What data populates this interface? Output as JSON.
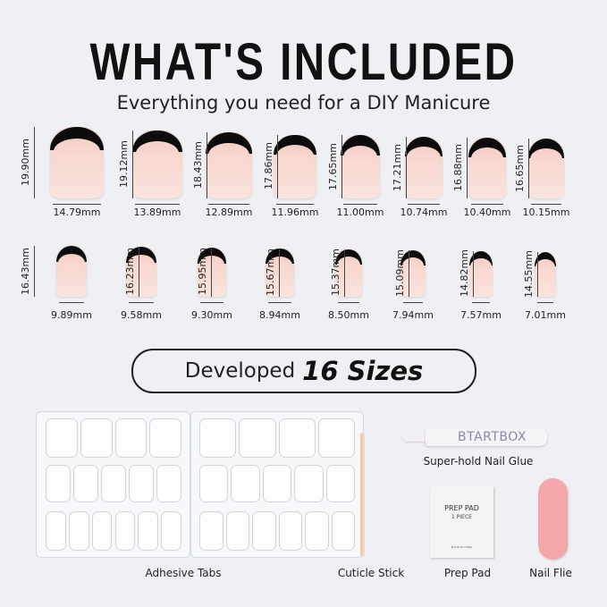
{
  "title": "WHAT'S INCLUDED",
  "subtitle": "Everything you need for a DIY Manicure",
  "nail_rows": [
    {
      "nails": [
        {
          "height": "19.90mm",
          "width": "14.79mm"
        },
        {
          "height": "19.12mm",
          "width": "13.89mm"
        },
        {
          "height": "18.43mm",
          "width": "12.89mm"
        },
        {
          "height": "17.86mm",
          "width": "11.96mm"
        },
        {
          "height": "17.65mm",
          "width": "11.00mm"
        },
        {
          "height": "17.21mm",
          "width": "10.74mm"
        },
        {
          "height": "16.88mm",
          "width": "10.40mm"
        },
        {
          "height": "16.65mm",
          "width": "10.15mm"
        }
      ]
    },
    {
      "nails": [
        {
          "height": "16.43mm",
          "width": "9.89mm"
        },
        {
          "height": "16.23mm",
          "width": "9.58mm"
        },
        {
          "height": "15.95mm",
          "width": "9.30mm"
        },
        {
          "height": "15.67mm",
          "width": "8.94mm"
        },
        {
          "height": "15.37mm",
          "width": "8.50mm"
        },
        {
          "height": "15.09mm",
          "width": "7.94mm"
        },
        {
          "height": "14.82mm",
          "width": "7.57mm"
        },
        {
          "height": "14.55mm",
          "width": "7.01mm"
        }
      ]
    }
  ],
  "banner": {
    "prefix": "Developed",
    "highlight": "16 Sizes"
  },
  "items": {
    "adhesive_tabs": "Adhesive Tabs",
    "cuticle_stick": "Cuticle Stick",
    "prep_pad": "Prep Pad",
    "nail_file": "Nail Flie",
    "nail_glue": "Super-hold Nail Glue"
  },
  "glue_brand": "BTARTBOX",
  "prep_pad_print": {
    "title": "PREP PAD",
    "count": "1 PIECE",
    "origin": "MADE IN CHINA"
  },
  "colors": {
    "background": "#eef0f4",
    "nail_tip": "#0c0c0c",
    "nail_base": "#f6cfc6",
    "nail_file": "#f4a6aa"
  }
}
